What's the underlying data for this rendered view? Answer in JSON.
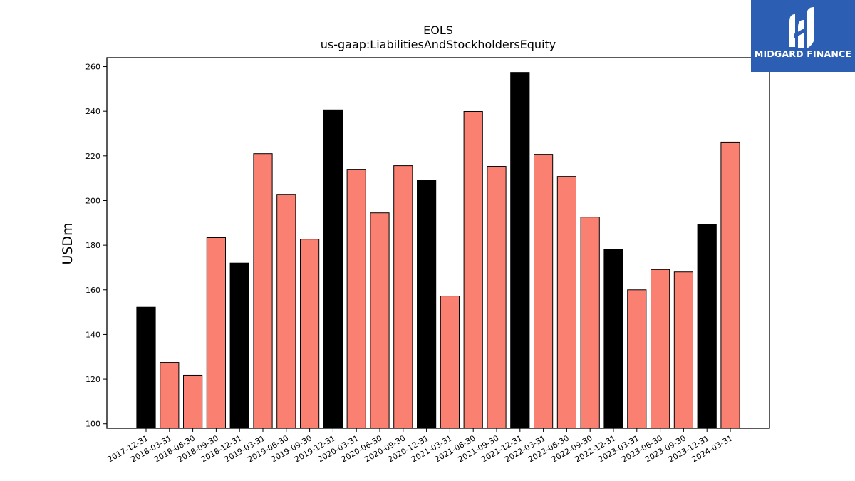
{
  "chart_data": {
    "type": "bar",
    "title": "EOLS",
    "subtitle": "us-gaap:LiabilitiesAndStockholdersEquity",
    "xlabel": "",
    "ylabel": "USDm",
    "ylim": [
      98,
      264
    ],
    "yticks": [
      100,
      120,
      140,
      160,
      180,
      200,
      220,
      240,
      260
    ],
    "grid": false,
    "categories": [
      "2017-12-31",
      "2018-03-31",
      "2018-06-30",
      "2018-09-30",
      "2018-12-31",
      "2019-03-31",
      "2019-06-30",
      "2019-09-30",
      "2019-12-31",
      "2020-03-31",
      "2020-06-30",
      "2020-09-30",
      "2020-12-31",
      "2021-03-31",
      "2021-06-30",
      "2021-09-30",
      "2021-12-31",
      "2022-03-31",
      "2022-06-30",
      "2022-09-30",
      "2022-12-31",
      "2023-03-31",
      "2023-06-30",
      "2023-09-30",
      "2023-12-31",
      "2024-03-31"
    ],
    "values": [
      152.2,
      127.5,
      121.8,
      183.4,
      172.0,
      221.0,
      202.8,
      182.7,
      240.6,
      214.0,
      194.5,
      215.6,
      209.0,
      157.2,
      239.9,
      215.3,
      257.4,
      220.7,
      210.8,
      192.6,
      178.0,
      160.0,
      169.1,
      168.0,
      189.2,
      226.2
    ],
    "colors": {
      "annual": "#000000",
      "quarterly": "#fa8072",
      "edge": "#000000"
    },
    "annual_categories": [
      "2017-12-31",
      "2018-12-31",
      "2019-12-31",
      "2020-12-31",
      "2021-12-31",
      "2022-12-31",
      "2023-12-31"
    ]
  },
  "logo": {
    "text": "MIDGARD FINANCE",
    "background": "#2c5fb4",
    "icon": "midgard-logo-icon"
  }
}
